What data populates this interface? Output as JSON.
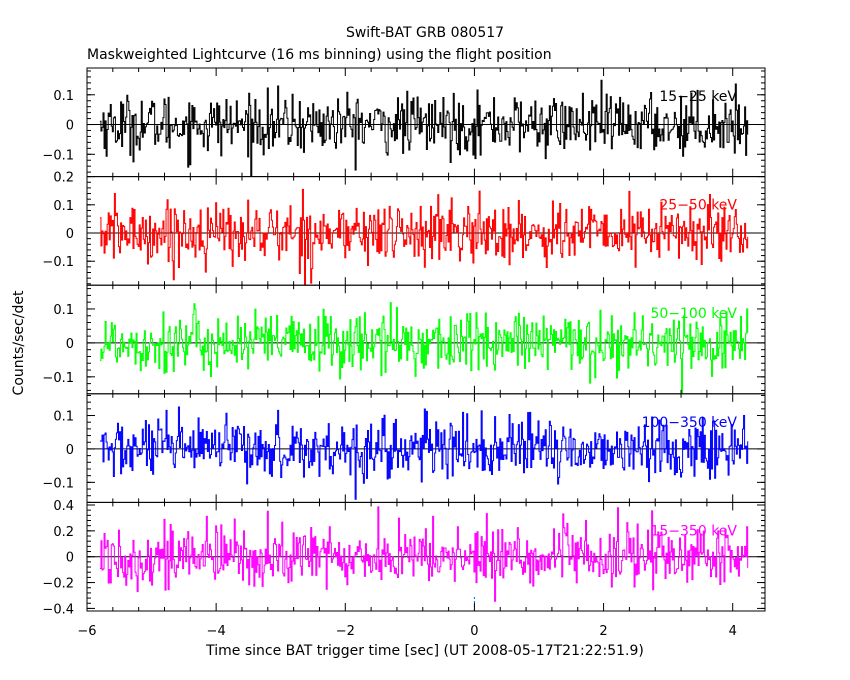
{
  "chart_data": {
    "type": "line",
    "title": "Swift-BAT GRB 080517",
    "subtitle": "Maskweighted Lightcurve (16 ms binning) using the flight position",
    "xlabel": "Time since BAT trigger time [sec] (UT 2008-05-17T21:22:51.9)",
    "ylabel": "Counts/sec/det",
    "x_range": [
      -6,
      4.5
    ],
    "x_ticks": [
      -6,
      -4,
      -2,
      0,
      2,
      4
    ],
    "x_tick_labels": [
      "−6",
      "−4",
      "−2",
      "0",
      "2",
      "4"
    ],
    "data_x_range": [
      -5.8,
      4.24
    ],
    "bin_width": 0.016,
    "grid": false,
    "legend": "none",
    "trigger_marker_x": 0,
    "panels": [
      {
        "band": "15−25 keV",
        "color": "#000000",
        "ylim": [
          -0.175,
          0.19
        ],
        "y_ticks": [
          -0.1,
          0,
          0.1
        ],
        "y_tick_labels": [
          "−0.1",
          "0",
          "0.1"
        ],
        "mean": 0.0,
        "amplitude": 0.05
      },
      {
        "band": "25−50 keV",
        "color": "#ff0000",
        "ylim": [
          -0.185,
          0.2
        ],
        "y_ticks": [
          -0.1,
          0,
          0.1,
          0.2
        ],
        "y_tick_labels": [
          "−0.1",
          "0",
          "0.1",
          "0.2"
        ],
        "mean": 0.0,
        "amplitude": 0.055
      },
      {
        "band": "50−100 keV",
        "color": "#00ff00",
        "ylim": [
          -0.15,
          0.17
        ],
        "y_ticks": [
          -0.1,
          0,
          0.1
        ],
        "y_tick_labels": [
          "−0.1",
          "0",
          "0.1"
        ],
        "mean": 0.0,
        "amplitude": 0.045
      },
      {
        "band": "100−350 keV",
        "color": "#0000ff",
        "ylim": [
          -0.16,
          0.165
        ],
        "y_ticks": [
          -0.1,
          0,
          0.1
        ],
        "y_tick_labels": [
          "−0.1",
          "0",
          "0.1"
        ],
        "mean": 0.0,
        "amplitude": 0.045
      },
      {
        "band": "15−350 keV",
        "color": "#ff00ff",
        "ylim": [
          -0.42,
          0.42
        ],
        "y_ticks": [
          -0.4,
          -0.2,
          0,
          0.2,
          0.4
        ],
        "y_tick_labels": [
          "−0.4",
          "−0.2",
          "0",
          "0.2",
          "0.4"
        ],
        "mean": 0.0,
        "amplitude": 0.12
      }
    ]
  }
}
